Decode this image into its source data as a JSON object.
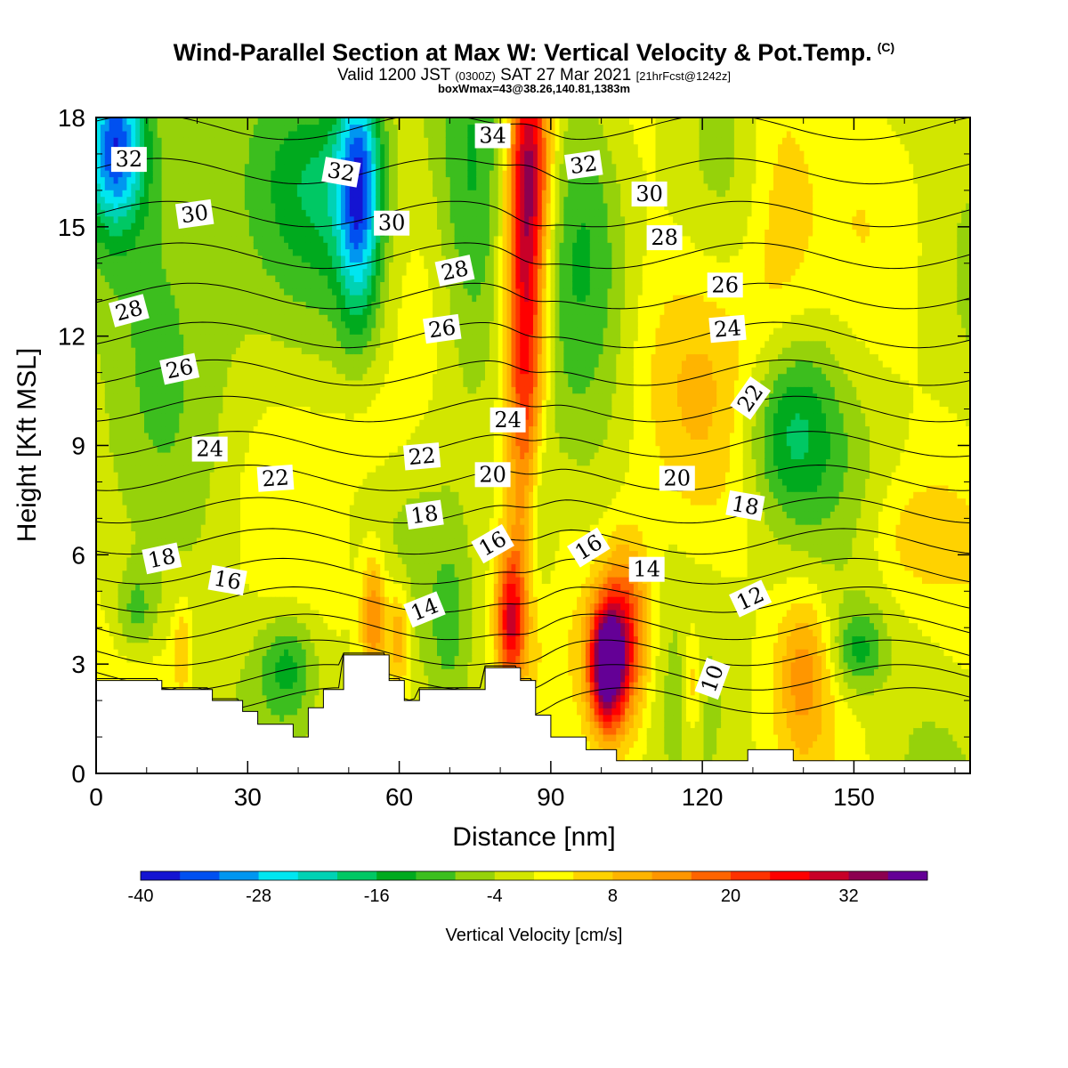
{
  "header": {
    "title": "Wind-Parallel Section at Max W: Vertical Velocity & Pot.Temp.",
    "copyright": "(C)",
    "valid_prefix": "Valid 1200 JST",
    "valid_z": "(0300Z)",
    "valid_date": "SAT 27 Mar 2021",
    "forecast": "[21hrFcst@1242z]",
    "box_info": "boxWmax=43@38.26,140.81,1383m"
  },
  "chart_data": {
    "type": "heatmap",
    "xlabel": "Distance [nm]",
    "ylabel": "Height [Kft MSL]",
    "xlim": [
      0,
      173
    ],
    "ylim": [
      0,
      18
    ],
    "x_ticks": [
      "0",
      "30",
      "60",
      "90",
      "120",
      "150"
    ],
    "y_ticks": [
      "0",
      "3",
      "6",
      "9",
      "12",
      "15",
      "18"
    ],
    "colorbar": {
      "label": "Vertical Velocity [cm/s]",
      "tick_labels": [
        "-40",
        "-28",
        "-16",
        "-4",
        "8",
        "20",
        "32"
      ],
      "bounds": [
        -40,
        40
      ],
      "colors": [
        "#1414d2",
        "#0050f0",
        "#0096f0",
        "#00e6f0",
        "#00d2b4",
        "#00c864",
        "#00aa1e",
        "#3cbe1e",
        "#96d20a",
        "#d2e600",
        "#ffff00",
        "#ffd200",
        "#ffb400",
        "#ff9600",
        "#ff6400",
        "#ff3200",
        "#ff0000",
        "#c80028",
        "#8c0050",
        "#640096"
      ]
    },
    "w_field": {
      "background_w": -1,
      "cells": [
        {
          "x": 85,
          "y": 12.5,
          "sx": 2.8,
          "sy": 4.0,
          "w": 30
        },
        {
          "x": 86,
          "y": 17.0,
          "sx": 3.0,
          "sy": 2.0,
          "w": 22
        },
        {
          "x": 82,
          "y": 4.2,
          "sx": 2.0,
          "sy": 1.4,
          "w": 26
        },
        {
          "x": 101,
          "y": 3.0,
          "sx": 2.5,
          "sy": 1.2,
          "w": 40
        },
        {
          "x": 105,
          "y": 3.8,
          "sx": 3.5,
          "sy": 1.8,
          "w": 24
        },
        {
          "x": 55,
          "y": 4.3,
          "sx": 1.8,
          "sy": 1.2,
          "w": 18
        },
        {
          "x": 60,
          "y": 3.8,
          "sx": 1.6,
          "sy": 1.0,
          "w": 14
        },
        {
          "x": 17,
          "y": 3.5,
          "sx": 1.2,
          "sy": 0.9,
          "w": 8
        },
        {
          "x": 140,
          "y": 2.8,
          "sx": 3.5,
          "sy": 1.5,
          "w": 12
        },
        {
          "x": 135,
          "y": 15.5,
          "sx": 5.0,
          "sy": 3.0,
          "w": 8
        },
        {
          "x": 120,
          "y": 11.0,
          "sx": 12.0,
          "sy": 2.5,
          "w": 6
        },
        {
          "x": 118,
          "y": 2.5,
          "sx": 1.3,
          "sy": 1.2,
          "w": 10
        },
        {
          "x": 55,
          "y": 9.5,
          "sx": 6.0,
          "sy": 1.2,
          "w": 4
        },
        {
          "x": 160,
          "y": 6.5,
          "sx": 6.0,
          "sy": 1.2,
          "w": 6
        },
        {
          "x": 4,
          "y": 17.2,
          "sx": 4.0,
          "sy": 1.5,
          "w": -30
        },
        {
          "x": 52,
          "y": 16.0,
          "sx": 3.0,
          "sy": 2.5,
          "w": -28
        },
        {
          "x": 16,
          "y": 15.0,
          "sx": 12.0,
          "sy": 3.5,
          "w": -10
        },
        {
          "x": 45,
          "y": 16.5,
          "sx": 9.0,
          "sy": 2.0,
          "w": -12
        },
        {
          "x": 74,
          "y": 14.5,
          "sx": 5.0,
          "sy": 3.5,
          "w": -12
        },
        {
          "x": 97,
          "y": 15.5,
          "sx": 6.0,
          "sy": 3.0,
          "w": -12
        },
        {
          "x": 137,
          "y": 9.5,
          "sx": 6.5,
          "sy": 1.8,
          "w": -16
        },
        {
          "x": 8,
          "y": 4.4,
          "sx": 3.0,
          "sy": 0.9,
          "w": -10
        },
        {
          "x": 38,
          "y": 3.0,
          "sx": 4.0,
          "sy": 1.0,
          "w": -12
        },
        {
          "x": 151,
          "y": 3.4,
          "sx": 3.5,
          "sy": 0.8,
          "w": -12
        },
        {
          "x": 88,
          "y": 7.0,
          "sx": 2.0,
          "sy": 1.8,
          "w": -10
        },
        {
          "x": 70,
          "y": 4.0,
          "sx": 2.5,
          "sy": 1.5,
          "w": -6
        }
      ]
    },
    "terrain": {
      "x": [
        0,
        13,
        13,
        23,
        23,
        29,
        29,
        32,
        32,
        39,
        39,
        42,
        42,
        45,
        45,
        49,
        49,
        58,
        58,
        61,
        61,
        64,
        64,
        77,
        77,
        84,
        84,
        87,
        87,
        90,
        90,
        97,
        97,
        103,
        103,
        129,
        129,
        138,
        138,
        173
      ],
      "y": [
        2.55,
        2.55,
        2.3,
        2.3,
        2.0,
        2.0,
        1.7,
        1.7,
        1.35,
        1.35,
        1.0,
        1.0,
        1.8,
        1.8,
        2.3,
        2.3,
        3.25,
        3.25,
        2.55,
        2.55,
        2.0,
        2.0,
        2.3,
        2.3,
        2.9,
        2.9,
        2.55,
        2.55,
        1.6,
        1.6,
        1.0,
        1.0,
        0.65,
        0.65,
        0.35,
        0.35,
        0.65,
        0.65,
        0.35,
        0.35
      ]
    },
    "theta_contours": {
      "values": [
        10,
        11,
        12,
        13,
        14,
        15,
        16,
        17,
        18,
        19,
        20,
        21,
        22,
        23,
        24,
        25,
        26,
        27,
        28,
        29,
        30,
        31,
        32,
        33,
        34,
        35
      ]
    },
    "contour_labels": [
      {
        "text": "32",
        "x": 6.5,
        "y": 16.85,
        "rot": 0
      },
      {
        "text": "30",
        "x": 19.5,
        "y": 15.35,
        "rot": -8
      },
      {
        "text": "28",
        "x": 6.5,
        "y": 12.7,
        "rot": -15
      },
      {
        "text": "26",
        "x": 16.5,
        "y": 11.1,
        "rot": -12
      },
      {
        "text": "24",
        "x": 22.5,
        "y": 8.9,
        "rot": 0
      },
      {
        "text": "22",
        "x": 35.5,
        "y": 8.1,
        "rot": -4
      },
      {
        "text": "18",
        "x": 13,
        "y": 5.9,
        "rot": -12
      },
      {
        "text": "16",
        "x": 26,
        "y": 5.3,
        "rot": 10
      },
      {
        "text": "32",
        "x": 48.5,
        "y": 16.5,
        "rot": 10
      },
      {
        "text": "30",
        "x": 58.5,
        "y": 15.1,
        "rot": 0
      },
      {
        "text": "28",
        "x": 71,
        "y": 13.8,
        "rot": -12
      },
      {
        "text": "26",
        "x": 68.5,
        "y": 12.2,
        "rot": -8
      },
      {
        "text": "22",
        "x": 64.5,
        "y": 8.7,
        "rot": -5
      },
      {
        "text": "18",
        "x": 65,
        "y": 7.1,
        "rot": -8
      },
      {
        "text": "14",
        "x": 65,
        "y": 4.5,
        "rot": -22
      },
      {
        "text": "34",
        "x": 78.5,
        "y": 17.5,
        "rot": 0
      },
      {
        "text": "24",
        "x": 81.5,
        "y": 9.7,
        "rot": 0
      },
      {
        "text": "20",
        "x": 78.5,
        "y": 8.2,
        "rot": 0
      },
      {
        "text": "16",
        "x": 78.5,
        "y": 6.3,
        "rot": -30
      },
      {
        "text": "32",
        "x": 96.5,
        "y": 16.7,
        "rot": -8
      },
      {
        "text": "30",
        "x": 109.5,
        "y": 15.9,
        "rot": 0
      },
      {
        "text": "28",
        "x": 112.5,
        "y": 14.7,
        "rot": 0
      },
      {
        "text": "26",
        "x": 124.5,
        "y": 13.4,
        "rot": 0
      },
      {
        "text": "24",
        "x": 125,
        "y": 12.2,
        "rot": -5
      },
      {
        "text": "22",
        "x": 129.5,
        "y": 10.3,
        "rot": -55
      },
      {
        "text": "20",
        "x": 115,
        "y": 8.1,
        "rot": 0
      },
      {
        "text": "18",
        "x": 128.5,
        "y": 7.35,
        "rot": 10
      },
      {
        "text": "16",
        "x": 97.5,
        "y": 6.2,
        "rot": -32
      },
      {
        "text": "14",
        "x": 109,
        "y": 5.6,
        "rot": 0
      },
      {
        "text": "12",
        "x": 129.5,
        "y": 4.8,
        "rot": -25
      },
      {
        "text": "10",
        "x": 122,
        "y": 2.6,
        "rot": -70
      }
    ]
  }
}
